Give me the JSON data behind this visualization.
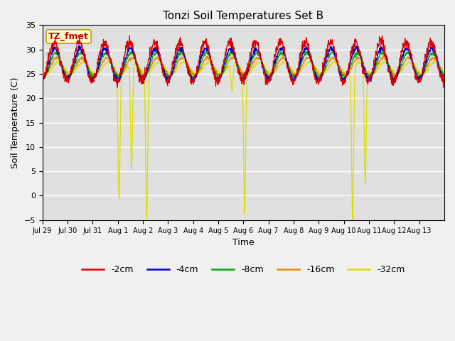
{
  "title": "Tonzi Soil Temperatures Set B",
  "xlabel": "Time",
  "ylabel": "Soil Temperature (C)",
  "annotation": "TZ_fmet",
  "ylim": [
    -5,
    35
  ],
  "yticks": [
    -5,
    0,
    5,
    10,
    15,
    20,
    25,
    30,
    35
  ],
  "xlabels": [
    "Jul 29",
    "Jul 30",
    "Jul 31",
    "Aug 1",
    "Aug 2",
    "Aug 3",
    "Aug 4",
    "Aug 5",
    "Aug 6",
    "Aug 7",
    "Aug 8",
    "Aug 9",
    "Aug 10",
    "Aug 11",
    "Aug 12",
    "Aug 13"
  ],
  "colors": {
    "-2cm": "#dd0000",
    "-4cm": "#0000cc",
    "-8cm": "#00aa00",
    "-16cm": "#ee8800",
    "-32cm": "#dddd00"
  },
  "legend_labels": [
    "-2cm",
    "-4cm",
    "-8cm",
    "-16cm",
    "-32cm"
  ],
  "plot_bg": "#e0e0e0",
  "fig_bg": "#f0f0f0",
  "grid_color": "#ffffff",
  "annot_bg": "#ffffcc",
  "annot_fg": "#cc0000",
  "annot_border": "#aaaa00"
}
